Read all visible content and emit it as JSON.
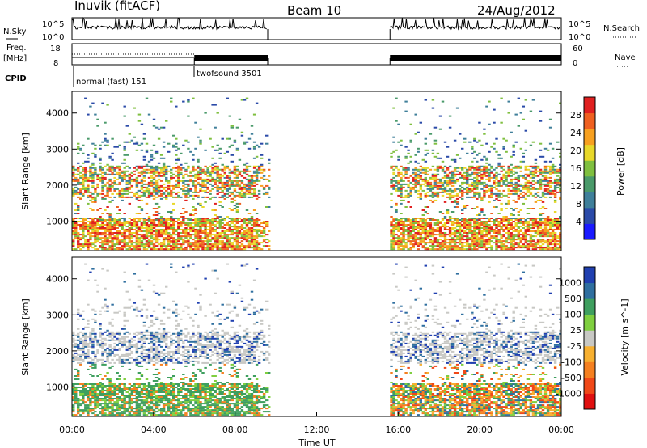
{
  "header": {
    "station": "Inuvik (fitACF)",
    "beam": "Beam 10",
    "date": "24/Aug/2012"
  },
  "top_panels": {
    "nsky_label": "N.Sky",
    "nsky_ticks": [
      "10^5",
      "10^0"
    ],
    "nsearch_label": "N.Search",
    "freq_label": "Freq.",
    "freq_unit": "[MHz]",
    "freq_ticks": [
      "18",
      "8"
    ],
    "nave_label": "Nave",
    "nave_ticks": [
      "60",
      "0"
    ],
    "cpid_label": "CPID",
    "cpid_modes": [
      "normal (fast) 151",
      "twofsound 3501"
    ]
  },
  "chart_data": [
    {
      "type": "heatmap",
      "title": "",
      "quantity": "Power",
      "colorbar_label": "Power [dB]",
      "colorbar_ticks": [
        "4",
        "8",
        "12",
        "16",
        "20",
        "24",
        "28"
      ],
      "colorbar_range": [
        0,
        30
      ],
      "colors": [
        "#1a1aff",
        "#2a4aa8",
        "#3f7f9a",
        "#4a9a6a",
        "#7fbf3f",
        "#e8d82a",
        "#f7a020",
        "#ef6020",
        "#e02020"
      ],
      "xlabel": "",
      "ylabel": "Slant Range [km]",
      "yticks": [
        1000,
        2000,
        3000,
        4000
      ],
      "ylim": [
        180,
        4600
      ],
      "xlim": [
        0,
        24
      ],
      "data_blocks_hours": [
        [
          0,
          9.6
        ],
        [
          15.6,
          24
        ]
      ]
    },
    {
      "type": "heatmap",
      "title": "",
      "quantity": "Velocity",
      "colorbar_label": "Velocity [m s^-1]",
      "colorbar_ticks": [
        "-1000",
        "-500",
        "-100",
        "-25",
        "25",
        "100",
        "500",
        "1000"
      ],
      "colorbar_range": [
        -1200,
        1200
      ],
      "colors": [
        "#e01010",
        "#f04818",
        "#f58020",
        "#f7b030",
        "#c8c8c4",
        "#7fcf3f",
        "#3f9f5f",
        "#2f6f9f",
        "#2040b0"
      ],
      "xlabel": "Time UT",
      "ylabel": "Slant Range [km]",
      "yticks": [
        1000,
        2000,
        3000,
        4000
      ],
      "ylim": [
        180,
        4600
      ],
      "xlim": [
        0,
        24
      ],
      "xticks": [
        "00:00",
        "04:00",
        "08:00",
        "12:00",
        "16:00",
        "20:00",
        "00:00"
      ]
    }
  ]
}
